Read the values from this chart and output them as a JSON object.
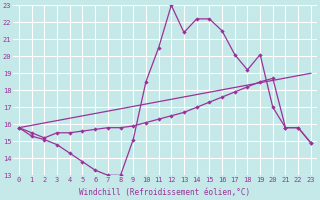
{
  "xlabel": "Windchill (Refroidissement éolien,°C)",
  "bg_color": "#c5e8e8",
  "grid_color": "#ffffff",
  "line_color": "#993399",
  "xlim": [
    -0.5,
    23.5
  ],
  "ylim": [
    13,
    23
  ],
  "yticks": [
    13,
    14,
    15,
    16,
    17,
    18,
    19,
    20,
    21,
    22,
    23
  ],
  "xticks": [
    0,
    1,
    2,
    3,
    4,
    5,
    6,
    7,
    8,
    9,
    10,
    11,
    12,
    13,
    14,
    15,
    16,
    17,
    18,
    19,
    20,
    21,
    22,
    23
  ],
  "curve1_x": [
    0,
    1,
    2,
    3,
    4,
    5,
    6,
    7,
    8,
    9,
    10,
    11,
    12,
    13,
    14,
    15,
    16,
    17,
    18,
    19,
    20,
    21,
    22,
    23
  ],
  "curve1_y": [
    15.8,
    15.3,
    15.1,
    14.8,
    14.3,
    13.8,
    13.3,
    13.0,
    13.0,
    15.1,
    18.5,
    20.5,
    23.0,
    21.4,
    22.2,
    22.2,
    21.5,
    20.1,
    19.2,
    20.1,
    17.0,
    15.8,
    15.8,
    14.9
  ],
  "curve2_x": [
    0,
    1,
    2,
    3,
    4,
    5,
    6,
    7,
    8,
    9,
    10,
    11,
    12,
    13,
    14,
    15,
    16,
    17,
    18,
    19,
    20,
    21,
    22,
    23
  ],
  "curve2_y": [
    15.8,
    15.5,
    15.2,
    15.5,
    15.5,
    15.6,
    15.7,
    15.8,
    15.8,
    15.9,
    16.1,
    16.3,
    16.5,
    16.7,
    17.0,
    17.3,
    17.6,
    17.9,
    18.2,
    18.5,
    18.7,
    15.8,
    15.8,
    14.9
  ],
  "curve3_x": [
    0,
    23
  ],
  "curve3_y": [
    15.8,
    19.0
  ]
}
